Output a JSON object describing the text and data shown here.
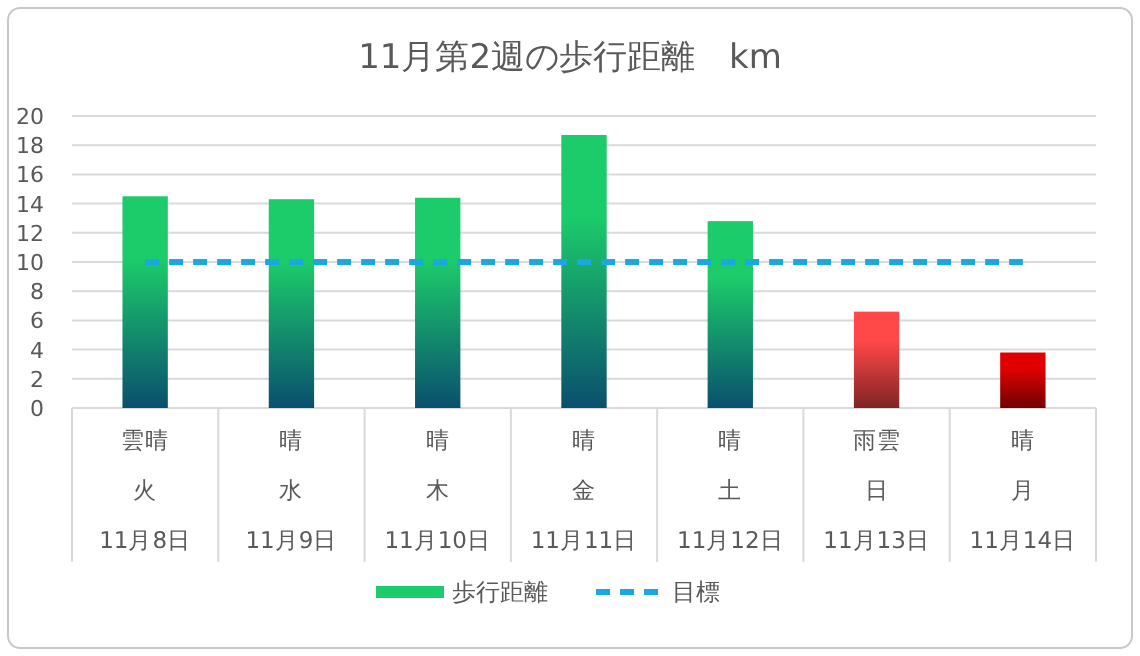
{
  "chart_data": {
    "type": "bar",
    "title": "11月第2週の歩行距離　km",
    "categories": [
      "11月8日",
      "11月9日",
      "11月10日",
      "11月11日",
      "11月12日",
      "11月13日",
      "11月14日"
    ],
    "annotations": [
      "雲晴",
      "晴",
      "晴",
      "晴",
      "晴",
      "雨雲",
      "晴",
      "火",
      "水",
      "木",
      "金",
      "土",
      "日",
      "月"
    ],
    "series": [
      {
        "name": "歩行距離",
        "color": "#1ccb6a",
        "colors": [
          "#1ccb6a",
          "#1ccb6a",
          "#1ccb6a",
          "#1ccb6a",
          "#1ccb6a",
          "#ff4848",
          "#e00000"
        ],
        "values": [
          14.5,
          14.3,
          14.4,
          18.7,
          12.8,
          6.6,
          3.8
        ]
      },
      {
        "name": "目標",
        "type": "line",
        "color": "#19a9e0",
        "line_style": "dashed",
        "values": [
          10,
          10,
          10,
          10,
          10,
          10,
          10
        ]
      }
    ],
    "ylim": [
      0,
      20
    ],
    "yticks": [
      0,
      2,
      4,
      6,
      8,
      10,
      12,
      14,
      16,
      18,
      20
    ],
    "grid": "y",
    "legend": "bottom"
  }
}
